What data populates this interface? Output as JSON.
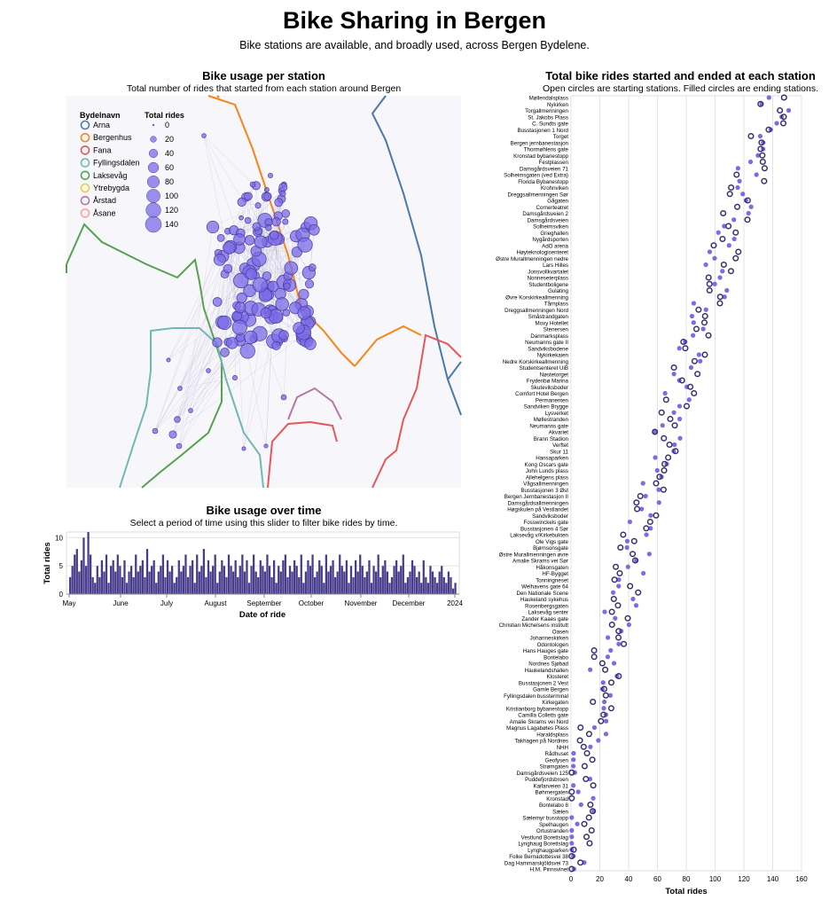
{
  "title": "Bike Sharing in Bergen",
  "subtitle": "Bike stations are available, and broadly used, across Bergen Bydelene.",
  "map": {
    "title": "Bike usage per station",
    "subtitle": "Total number of rides that started from each station around Bergen",
    "legend_district_title": "Bydelnavn",
    "districts": [
      {
        "name": "Arna",
        "color": "#4c78a8"
      },
      {
        "name": "Bergenhus",
        "color": "#f58518"
      },
      {
        "name": "Fana",
        "color": "#e45756"
      },
      {
        "name": "Fyllingsdalen",
        "color": "#72b7b2"
      },
      {
        "name": "Laksevåg",
        "color": "#54a24b"
      },
      {
        "name": "Ytrebygda",
        "color": "#eeca3b"
      },
      {
        "name": "Årstad",
        "color": "#b279a2"
      },
      {
        "name": "Åsane",
        "color": "#ff9da6"
      }
    ],
    "legend_size_title": "Total rides",
    "size_values": [
      0,
      20,
      40,
      60,
      80,
      100,
      120,
      140
    ],
    "point_color": "#7b6be8"
  },
  "timeline": {
    "title": "Bike usage over time",
    "subtitle": "Select a period of time using this slider to filter bike rides by time.",
    "ylabel": "Total rides",
    "xlabel": "Date of ride",
    "ylim": [
      0,
      11
    ],
    "yticks": [
      0,
      5,
      10
    ],
    "month_labels": [
      "May",
      "June",
      "July",
      "August",
      "September",
      "October",
      "November",
      "December",
      "2024"
    ],
    "bar_color": "#473c8b",
    "values": [
      3,
      5,
      7,
      8,
      4,
      6,
      10,
      5,
      11,
      7,
      3,
      2,
      5,
      3,
      6,
      4,
      7,
      2,
      5,
      6,
      4,
      7,
      5,
      3,
      6,
      2,
      4,
      5,
      3,
      7,
      4,
      5,
      6,
      3,
      8,
      4,
      5,
      6,
      2,
      4,
      5,
      7,
      3,
      6,
      4,
      5,
      2,
      3,
      6,
      4,
      5,
      7,
      3,
      5,
      6,
      2,
      7,
      4,
      5,
      8,
      3,
      6,
      4,
      5,
      7,
      2,
      4,
      6,
      5,
      3,
      7,
      5,
      4,
      6,
      3,
      5,
      7,
      4,
      6,
      2,
      5,
      7,
      4,
      3,
      6,
      5,
      4,
      7,
      5,
      3,
      6,
      2,
      5,
      4,
      6,
      7,
      3,
      5,
      4,
      6,
      5,
      3,
      7,
      2,
      4,
      6,
      5,
      7,
      3,
      4,
      6,
      5,
      2,
      7,
      4,
      5,
      6,
      3,
      4,
      7,
      5,
      4,
      6,
      2,
      5,
      3,
      6,
      4,
      7,
      5,
      3,
      4,
      6,
      2,
      5,
      4,
      7,
      3,
      5,
      6,
      4,
      2,
      3,
      5,
      6,
      4,
      5,
      7,
      2,
      3,
      4,
      6,
      5,
      3,
      4,
      2,
      6,
      3,
      2,
      5,
      4,
      3,
      2,
      4,
      5,
      3,
      2,
      4,
      3,
      1,
      2
    ]
  },
  "rides": {
    "title": "Total bike rides started and ended at each station",
    "subtitle": "Open circles are starting stations. Filled circles are ending stations.",
    "xlabel": "Total rides",
    "xlim": [
      0,
      160
    ],
    "xticks": [
      0,
      20,
      40,
      60,
      80,
      100,
      120,
      140,
      160
    ],
    "start_color": "#3b2e6e",
    "end_color": "#7b6be8",
    "stations": [
      "Møllendalsplass",
      "Nykirken",
      "Torgallmenningen",
      "St. Jakobs Plass",
      "C. Sundts gate",
      "Busstasjonen 1 Nord",
      "Torget",
      "Bergen jernbanestasjon",
      "Thormøhlens gate",
      "Kronstad bybanestopp",
      "Festplassen",
      "Damsgårdsveien 71",
      "Solheimsgaten (ved Extra)",
      "Florida Bybanestopp",
      "Krohnviken",
      "Dreggsallmenningen Sør",
      "Gågaten",
      "Cornerteatret",
      "Damsgårdsveien 2",
      "Damsgårdsveien",
      "Solheimsviken",
      "Grieghallen",
      "Nygårdsporten",
      "AdO arena",
      "Høyteknologisenteret",
      "Østre Murallmenningen nedre",
      "Lars Hilles",
      "Jonsvollkvartalet",
      "Nonneseterplass",
      "Studentboligene",
      "Gulating",
      "Øvre Korskirkeallmenning",
      "Tårnplass",
      "Dreggsallmenningen Nord",
      "Småstrandgaten",
      "Moxy Hotellet",
      "Stenersen",
      "Danmarksplass",
      "Neumanns gate II",
      "Sandviksbodene",
      "Nykirkekaien",
      "Nedre Korskirkeallmenning",
      "Studentsenteret UiB",
      "Nøstetorget",
      "Frydenbø Marina",
      "Skuteviksboder",
      "Comfort Hotel Bergen",
      "Permanenten",
      "Sandviken Brygge",
      "Lysverket",
      "Møllestranden",
      "Neumanns gate",
      "Akvariet",
      "Brann Stadion",
      "Verftet",
      "Skur 11",
      "Hansaparken",
      "Kong Oscars gate",
      "John Lunds plass",
      "Allehelgens plass",
      "Vågsallmenningen",
      "Busstasjonen 3 Øst",
      "Bergen Jernbanestasjon II",
      "Damsgårdsallmenningen",
      "Høgskulen på Vestlandet",
      "Sandviksboder",
      "Fosswinckels gate",
      "Busstasjonen 4 Sør",
      "Laksevåg v/Kirkebukten",
      "Ole Vigs gate",
      "Bjørnsonsgate",
      "Østre Murallmenningen øvre",
      "Amalie Skrams vei Sør",
      "Håkonsgaten",
      "HF-Bygget",
      "Tonningneset",
      "Welhavens gate 64",
      "Den Nationale Scene",
      "Haukeland sykehus",
      "Rosenbergsgaten",
      "Laksevåg senter",
      "Zander Kaaes gate",
      "Christian Michelsens institutt",
      "Oasen",
      "Johanneskirken",
      "Odontologen",
      "Hans Hauges gate",
      "Bontelabo",
      "Nordnes Sjøbad",
      "Haukelandshallen",
      "Klosteret",
      "Busstasjonen 2 Vest",
      "Gamle Bergen",
      "Fyllingsdalen bussterminal",
      "Kirkegaten",
      "Kristianborg bybanestopp",
      "Camilla Colletts gate",
      "Amalie Skrams vei Nord",
      "Magnus Lagabøtes Plass",
      "Haraldsplass",
      "Takhagen på Nordnes",
      "NHH",
      "Rådhuset",
      "Geofysen",
      "Strømgaten",
      "Damsgårdsveien 125",
      "Puddefjordsbroen",
      "Kaifarveien 31",
      "Bøhmergaten",
      "Kronstad",
      "Bontelabo 8",
      "Sælen",
      "Sælemyr busstopp",
      "Spelhaugen",
      "Ortustranden",
      "Vestlund Borettslag",
      "Lynghaug Borettslag",
      "Lynghaugparken",
      "Folke Bernadottesvei 38",
      "Dag Hammarskjöldsvei 73",
      "H.M. Pinnsvinet"
    ]
  }
}
